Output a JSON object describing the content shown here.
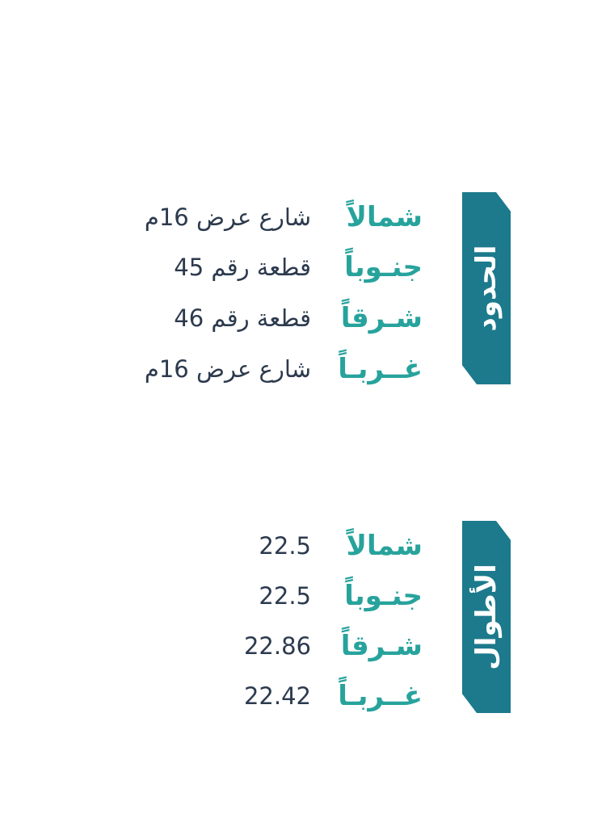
{
  "colors": {
    "tab": "#1c7a8c",
    "label": "#27a39c",
    "value": "#2c3a4e"
  },
  "boundaries": {
    "title": "الحدود",
    "rows": [
      {
        "label": "شمالاً",
        "value": "شارع عرض 16م"
      },
      {
        "label": "جنـوباً",
        "value": "قطعة رقم 45"
      },
      {
        "label": "شـرقاً",
        "value": "قطعة رقم 46"
      },
      {
        "label": "غــربـاً",
        "value": "شارع عرض 16م"
      }
    ]
  },
  "lengths": {
    "title": "الأطوال",
    "rows": [
      {
        "label": "شمالاً",
        "value": "22.5"
      },
      {
        "label": "جنـوباً",
        "value": "22.5"
      },
      {
        "label": "شـرقاً",
        "value": "22.86"
      },
      {
        "label": "غــربـاً",
        "value": "22.42"
      }
    ]
  }
}
